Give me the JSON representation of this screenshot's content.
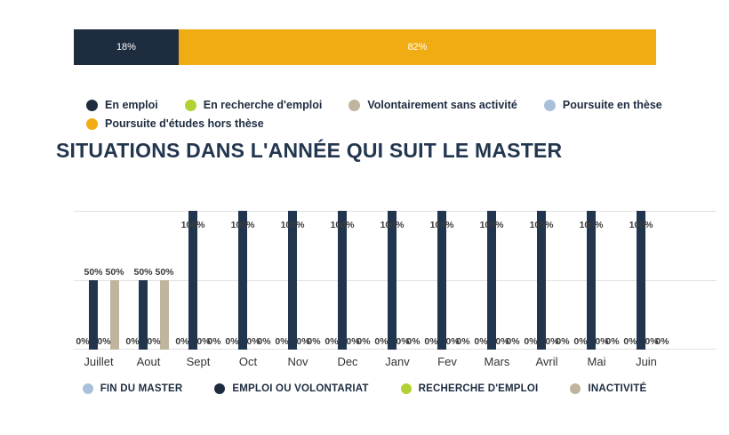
{
  "title": "SITUATIONS DANS L'ANNÉE QUI SUIT LE MASTER",
  "top_legend": {
    "items": [
      {
        "label": "En emploi",
        "color": "#1E2C40"
      },
      {
        "label": "En recherche d'emploi",
        "color": "#B2D234"
      },
      {
        "label": "Volontairement sans activité",
        "color": "#BFB49E"
      },
      {
        "label": "Poursuite en thèse",
        "color": "#A9C0DB"
      },
      {
        "label": "Poursuite d'études hors thèse",
        "color": "#F0AC12"
      }
    ]
  },
  "chart_data": [
    {
      "type": "bar",
      "subtype": "horizontal-stacked",
      "description": "summary distribution bar",
      "segments": [
        {
          "label": "18%",
          "value": 18,
          "color": "#1E2C40"
        },
        {
          "label": "82%",
          "value": 82,
          "color": "#F0AC12"
        }
      ],
      "xlim": [
        0,
        100
      ]
    },
    {
      "type": "bar",
      "title": "SITUATIONS DANS L'ANNÉE QUI SUIT LE MASTER",
      "categories": [
        "Juillet",
        "Aout",
        "Sept",
        "Oct",
        "Nov",
        "Dec",
        "Janv",
        "Fev",
        "Mars",
        "Avril",
        "Mai",
        "Juin"
      ],
      "series": [
        {
          "name": "FIN DU MASTER",
          "color": "#A9C0DB",
          "values": [
            0,
            0,
            0,
            0,
            0,
            0,
            0,
            0,
            0,
            0,
            0,
            0
          ]
        },
        {
          "name": "EMPLOI OU VOLONTARIAT",
          "color": "#21364E",
          "values": [
            50,
            50,
            100,
            100,
            100,
            100,
            100,
            100,
            100,
            100,
            100,
            100
          ]
        },
        {
          "name": "RECHERCHE D'EMPLOI",
          "color": "#B2D234",
          "values": [
            0,
            0,
            0,
            0,
            0,
            0,
            0,
            0,
            0,
            0,
            0,
            0
          ]
        },
        {
          "name": "INACTIVITÉ",
          "color": "#BFB49E",
          "values": [
            50,
            50,
            0,
            0,
            0,
            0,
            0,
            0,
            0,
            0,
            0,
            0
          ]
        }
      ],
      "ylim": [
        0,
        100
      ],
      "grid": true,
      "gridline_values": [
        0,
        50,
        100
      ],
      "value_label_suffix": "%",
      "legend_position": "bottom"
    }
  ],
  "bottom_legend": {
    "items": [
      {
        "label": "FIN DU MASTER",
        "color": "#A9C0DB"
      },
      {
        "label": "EMPLOI OU VOLONTARIAT",
        "color": "#1E2C40"
      },
      {
        "label": "RECHERCHE D'EMPLOI",
        "color": "#B2D234"
      },
      {
        "label": "INACTIVITÉ",
        "color": "#BFB49E"
      }
    ]
  }
}
